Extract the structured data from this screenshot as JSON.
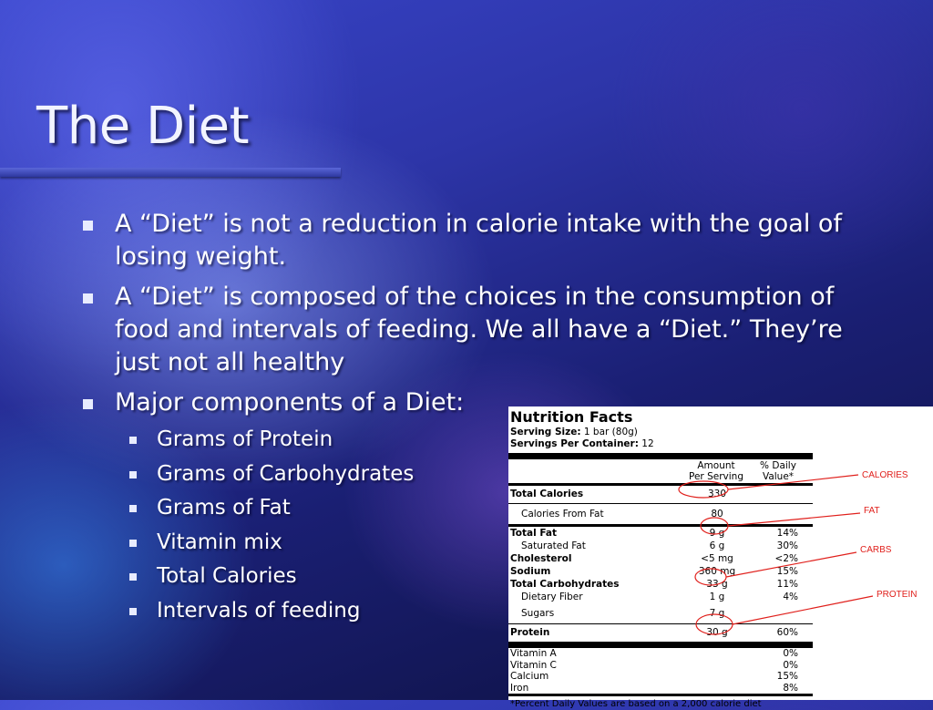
{
  "slide": {
    "title": "The Diet",
    "bullets": [
      {
        "text": "A “Diet” is not a reduction in calorie intake with the goal of losing weight."
      },
      {
        "text": "A “Diet” is composed of the choices in the consumption of food and intervals of feeding.  We all have a “Diet.”  They’re just not all healthy"
      },
      {
        "text": "Major components of a Diet:",
        "sub": [
          "Grams of Protein",
          "Grams of Carbohydrates",
          "Grams of Fat",
          "Vitamin mix",
          "Total Calories",
          "Intervals of feeding"
        ]
      }
    ]
  },
  "nutrition_label": {
    "title": "Nutrition Facts",
    "serving_size_label": "Serving Size:",
    "serving_size_value": "1 bar (80g)",
    "servings_label": "Servings Per Container:",
    "servings_value": "12",
    "header_amount_1": "Amount",
    "header_amount_2": "Per Serving",
    "header_dv_1": "% Daily",
    "header_dv_2": "Value*",
    "total_calories": {
      "name": "Total Calories",
      "amount": "330"
    },
    "calories_from_fat": {
      "name": "Calories From Fat",
      "amount": "80"
    },
    "total_fat": {
      "name": "Total Fat",
      "amount": "9 g",
      "dv": "14%"
    },
    "saturated_fat": {
      "name": "Saturated Fat",
      "amount": "6 g",
      "dv": "30%"
    },
    "cholesterol": {
      "name": "Cholesterol",
      "amount": "<5 mg",
      "dv": "<2%"
    },
    "sodium": {
      "name": "Sodium",
      "amount": "360 mg",
      "dv": "15%"
    },
    "total_carbs": {
      "name": "Total Carbohydrates",
      "amount": "33 g",
      "dv": "11%"
    },
    "fiber": {
      "name": "Dietary Fiber",
      "amount": "1 g",
      "dv": "4%"
    },
    "sugars": {
      "name": "Sugars",
      "amount": "7 g"
    },
    "protein": {
      "name": "Protein",
      "amount": "30 g",
      "dv": "60%"
    },
    "vitamin_a": {
      "name": "Vitamin A",
      "dv": "0%"
    },
    "vitamin_c": {
      "name": "Vitamin C",
      "dv": "0%"
    },
    "calcium": {
      "name": "Calcium",
      "dv": "15%"
    },
    "iron": {
      "name": "Iron",
      "dv": "8%"
    },
    "footnote": "*Percent Daily Values are based on a 2,000 calorie diet"
  },
  "annotations": {
    "calories": "CALORIES",
    "fat": "FAT",
    "carbs": "CARBS",
    "protein": "PROTEIN",
    "color": "#e0201c"
  }
}
